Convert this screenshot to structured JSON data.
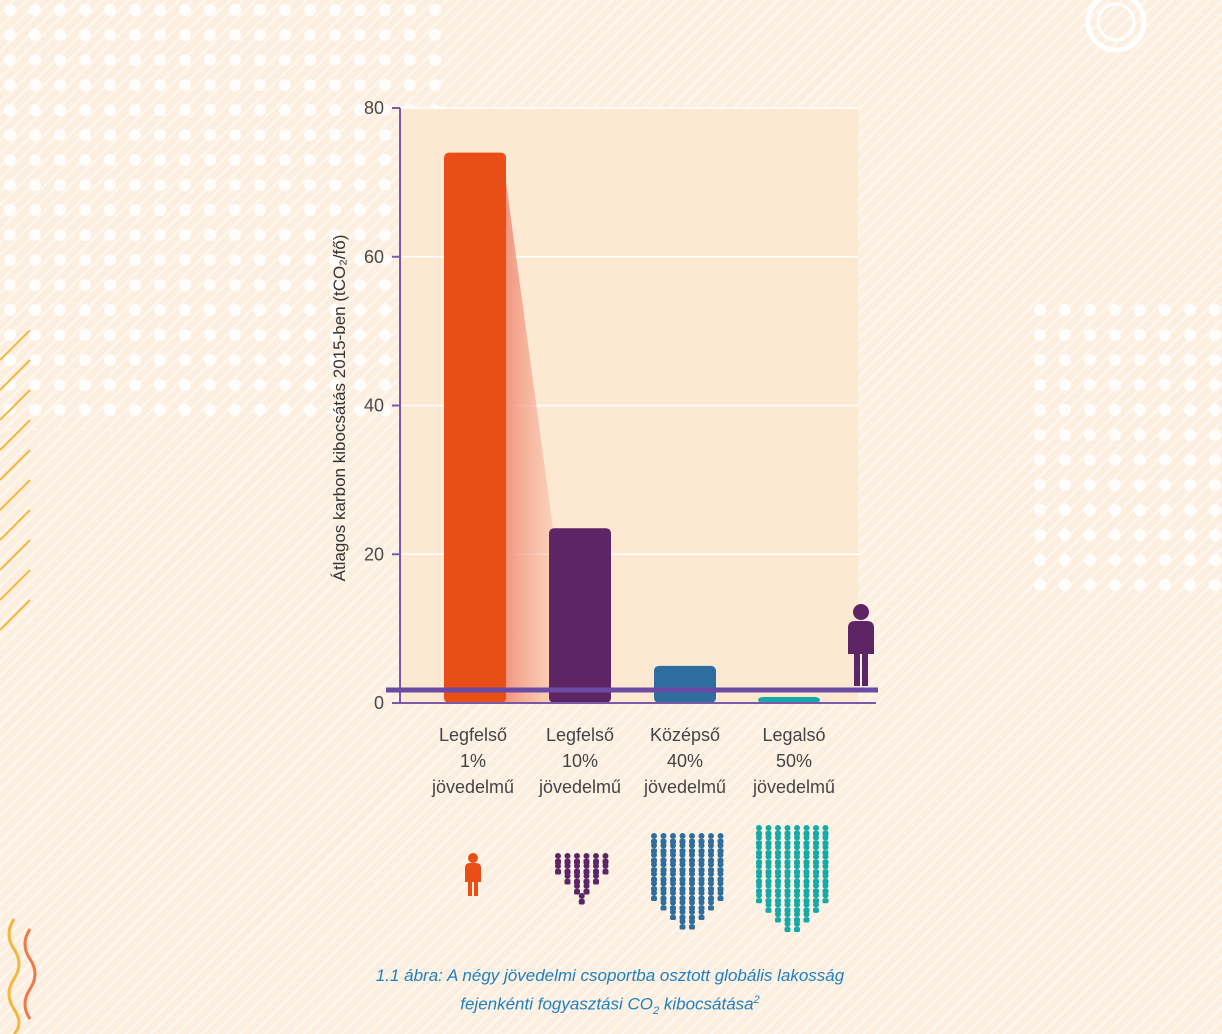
{
  "chart_data": {
    "type": "bar",
    "categories": [
      "Legfelső 1% jövedelmű",
      "Legfelső 10% jövedelmű",
      "Középső 40% jövedelmű",
      "Legalsó 50% jövedelmű"
    ],
    "category_lines": [
      [
        "Legfelső",
        "1%",
        "jövedelmű"
      ],
      [
        "Legfelső",
        "10%",
        "jövedelmű"
      ],
      [
        "Középső",
        "40%",
        "jövedelmű"
      ],
      [
        "Legalsó",
        "50%",
        "jövedelmű"
      ]
    ],
    "values": [
      74,
      23.5,
      5,
      0.8
    ],
    "ylabel": "Átlagos karbon kibocsátás 2015-ben (tCO₂/fő)",
    "ylim": [
      0,
      80
    ],
    "yticks": [
      0,
      20,
      40,
      60,
      80
    ],
    "grid": true,
    "colors": [
      "#e84e15",
      "#5e2565",
      "#2e6e9e",
      "#14aaa6"
    ],
    "reference_line_color": "#6b4aa3"
  },
  "caption": {
    "line1": "1.1 ábra: A négy jövedelmi csoportba osztott globális lakosság",
    "line2_prefix": "fejenkénti fogyasztási CO",
    "line2_sub": "2",
    "line2_suffix": " kibocsátása",
    "line2_sup": "2"
  },
  "icons": [
    "person-icon",
    "group-10-icon",
    "group-40-icon",
    "group-50-icon"
  ]
}
